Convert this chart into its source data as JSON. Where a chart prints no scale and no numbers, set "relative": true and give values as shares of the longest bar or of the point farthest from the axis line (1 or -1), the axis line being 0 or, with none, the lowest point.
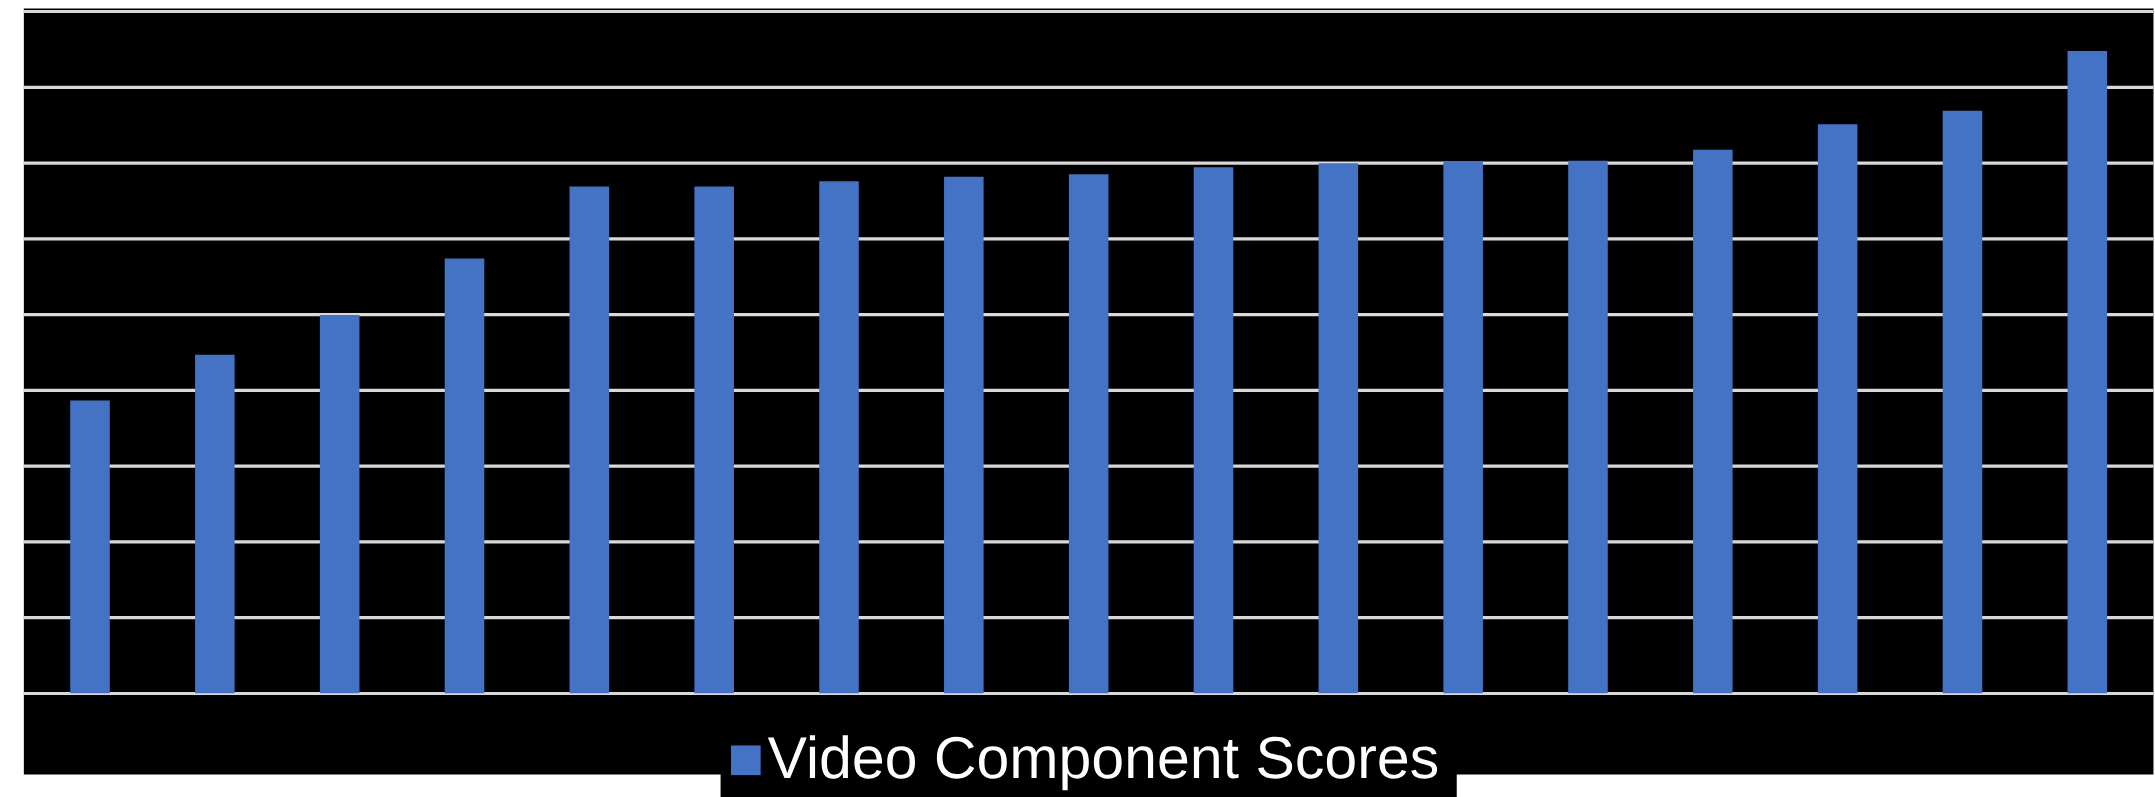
{
  "chart_data": {
    "type": "bar",
    "relative": true,
    "grid": "y",
    "legend": "bottom",
    "categories": [
      null,
      null,
      null,
      null,
      null,
      null,
      null,
      null,
      null,
      null,
      null,
      null,
      null,
      null,
      null,
      null,
      null
    ],
    "series": [
      {
        "name": "Video Component Scores",
        "color": "#4472c4",
        "values": [
          0.456,
          0.527,
          0.589,
          0.677,
          0.789,
          0.789,
          0.797,
          0.804,
          0.808,
          0.819,
          0.825,
          0.827,
          0.829,
          0.846,
          0.886,
          0.907,
          1
        ]
      }
    ]
  }
}
